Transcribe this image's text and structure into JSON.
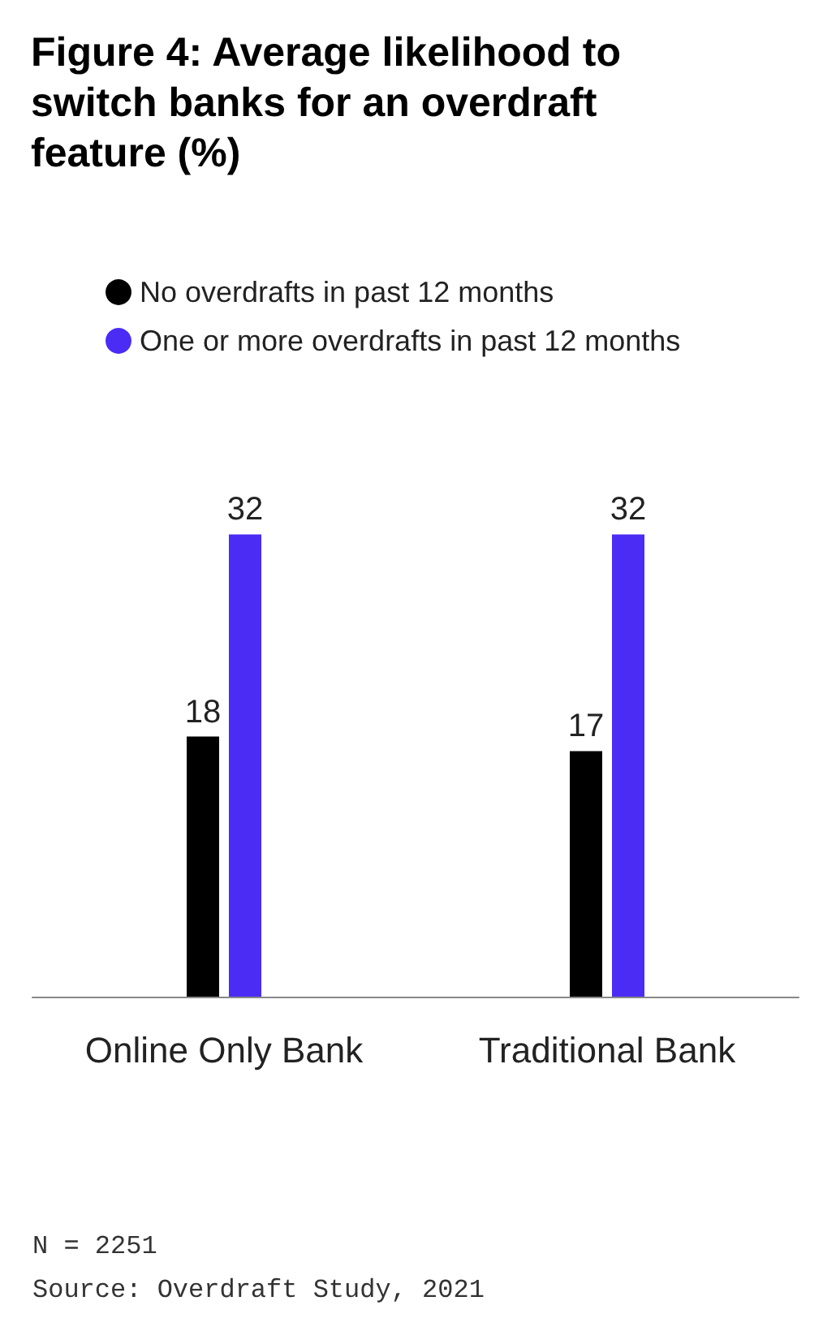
{
  "chart_data": {
    "type": "bar",
    "title": "Figure 4: Average likelihood to switch banks for an overdraft feature (%)",
    "categories": [
      "Online Only Bank",
      "Traditional Bank"
    ],
    "series": [
      {
        "name": "No overdrafts in past 12 months",
        "color": "#000000",
        "values": [
          18,
          17
        ]
      },
      {
        "name": "One or more overdrafts in past 12 months",
        "color": "#4a2cf5",
        "values": [
          32,
          32
        ]
      }
    ],
    "data_labels": true,
    "legend": "top left",
    "annotations": [
      "N = 2251",
      "Source: Overdraft Study, 2021"
    ]
  }
}
